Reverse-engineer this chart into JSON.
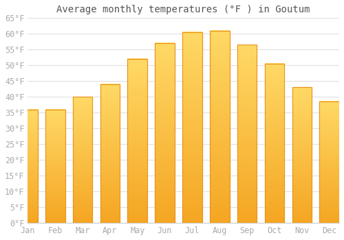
{
  "title": "Average monthly temperatures (°F ) in Goutum",
  "months": [
    "Jan",
    "Feb",
    "Mar",
    "Apr",
    "May",
    "Jun",
    "Jul",
    "Aug",
    "Sep",
    "Oct",
    "Nov",
    "Dec"
  ],
  "values": [
    36,
    36,
    40,
    44,
    52,
    57,
    60.5,
    61,
    56.5,
    50.5,
    43,
    38.5
  ],
  "bar_color_top": "#FFD966",
  "bar_color_bottom": "#F5A623",
  "bar_edge_color": "#E8921A",
  "background_color": "#FFFFFF",
  "plot_bg_color": "#FFFFFF",
  "ylim": [
    0,
    65
  ],
  "yticks": [
    0,
    5,
    10,
    15,
    20,
    25,
    30,
    35,
    40,
    45,
    50,
    55,
    60,
    65
  ],
  "ytick_labels": [
    "0°F",
    "5°F",
    "10°F",
    "15°F",
    "20°F",
    "25°F",
    "30°F",
    "35°F",
    "40°F",
    "45°F",
    "50°F",
    "55°F",
    "60°F",
    "65°F"
  ],
  "title_fontsize": 10,
  "tick_fontsize": 8.5,
  "grid_color": "#E0E0E0",
  "text_color": "#AAAAAA",
  "title_color": "#555555"
}
